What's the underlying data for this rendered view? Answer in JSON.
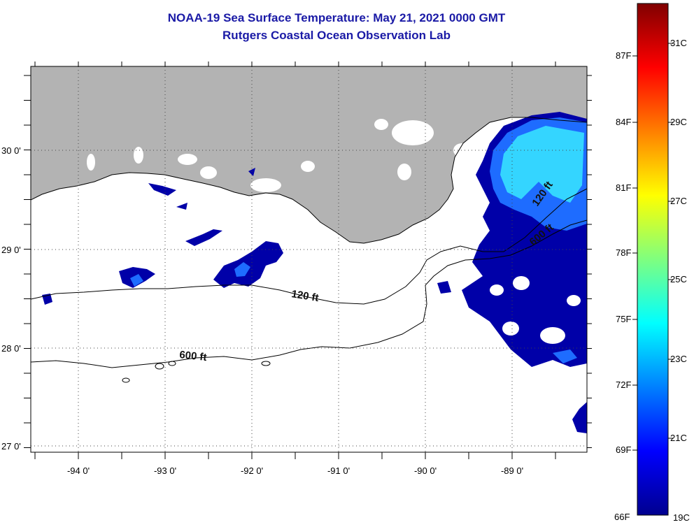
{
  "title": "NOAA-19 Sea Surface Temperature:  May 21, 2021 0000 GMT",
  "subtitle": "Rutgers Coastal Ocean Observation Lab",
  "map": {
    "lat_labels": [
      "30 0'",
      "29 0'",
      "28 0'",
      "27 0'"
    ],
    "lon_labels": [
      "-94 0'",
      "-93 0'",
      "-92 0'",
      "-91 0'",
      "-90 0'",
      "-89 0'"
    ],
    "contour_labels": {
      "c120_west": "120 ft",
      "c600_west": "600 ft",
      "c120_east": "120 ft",
      "c600_east": "600 ft"
    },
    "colors": {
      "land": "#b3b3b3",
      "cloud": "#ffffff",
      "sst_cold": "#0000a8",
      "sst_mid": "#1e6cff",
      "sst_warm": "#38e8ff"
    }
  },
  "colorbar": {
    "fahrenheit": [
      "87F",
      "84F",
      "81F",
      "78F",
      "75F",
      "72F",
      "69F",
      "66F"
    ],
    "celsius": [
      "31C",
      "29C",
      "27C",
      "25C",
      "23C",
      "21C",
      "19C"
    ]
  }
}
